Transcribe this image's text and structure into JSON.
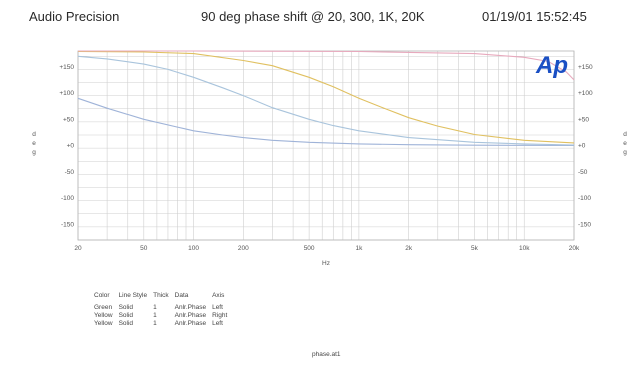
{
  "header": {
    "left": "Audio Precision",
    "center": "90 deg phase shift @ 20, 300, 1K, 20K",
    "right": "01/19/01 15:52:45"
  },
  "logo_text": "Ap",
  "footer": "phase.at1",
  "legend": {
    "headers": [
      "Color",
      "Line Style",
      "Thick",
      "Data",
      "Axis"
    ],
    "rows": [
      [
        "Green",
        "Solid",
        "1",
        "Anlr.Phase",
        "Left"
      ],
      [
        "Yellow",
        "Solid",
        "1",
        "Anlr.Phase",
        "Right"
      ],
      [
        "Yellow",
        "Solid",
        "1",
        "Anlr.Phase",
        "Left"
      ]
    ]
  },
  "colors": {
    "grid": "#cfcfcf",
    "frame": "#b5b5b5",
    "logo": "#1a4fc4",
    "series": [
      "#9fb3d8",
      "#e0c060",
      "#a9c4dc",
      "#e7a9bd"
    ]
  },
  "chart_data": {
    "type": "line",
    "x_scale": "log",
    "xlim": [
      20,
      20000
    ],
    "ylim": [
      -180,
      180
    ],
    "xlabel": "Hz",
    "ylabel_left": "deg",
    "ylabel_right": "deg",
    "x_ticks": [
      {
        "v": 20,
        "l": "20"
      },
      {
        "v": 50,
        "l": "50"
      },
      {
        "v": 100,
        "l": "100"
      },
      {
        "v": 200,
        "l": "200"
      },
      {
        "v": 500,
        "l": "500"
      },
      {
        "v": 1000,
        "l": "1k"
      },
      {
        "v": 2000,
        "l": "2k"
      },
      {
        "v": 5000,
        "l": "5k"
      },
      {
        "v": 10000,
        "l": "10k"
      },
      {
        "v": 20000,
        "l": "20k"
      }
    ],
    "y_ticks": [
      {
        "v": 150,
        "l": "+150"
      },
      {
        "v": 100,
        "l": "+100"
      },
      {
        "v": 50,
        "l": "+50"
      },
      {
        "v": 0,
        "l": "+0"
      },
      {
        "v": -50,
        "l": "-50"
      },
      {
        "v": -100,
        "l": "-100"
      },
      {
        "v": -150,
        "l": "-150"
      }
    ],
    "grid": true,
    "series": [
      {
        "x": [
          20,
          30,
          50,
          80,
          100,
          150,
          200,
          300,
          500,
          1000,
          2000,
          5000,
          10000,
          20000
        ],
        "y": [
          90,
          71,
          50,
          35,
          28,
          20,
          15,
          10,
          6,
          3,
          1.5,
          0.6,
          0.3,
          0
        ]
      },
      {
        "x": [
          20,
          50,
          100,
          200,
          300,
          500,
          700,
          1000,
          1500,
          2000,
          3000,
          5000,
          10000,
          20000
        ],
        "y": [
          179,
          178,
          175,
          162,
          152,
          130,
          112,
          90,
          68,
          53,
          37,
          21,
          10,
          5
        ]
      },
      {
        "x": [
          20,
          30,
          50,
          70,
          100,
          150,
          200,
          300,
          500,
          700,
          1000,
          2000,
          5000,
          10000,
          20000
        ],
        "y": [
          170,
          165,
          155,
          145,
          130,
          110,
          95,
          72,
          50,
          38,
          28,
          15,
          6,
          3,
          1
        ]
      },
      {
        "x": [
          20,
          100,
          1000,
          5000,
          10000,
          14000,
          18000,
          20000
        ],
        "y": [
          180,
          180,
          179,
          175,
          168,
          160,
          140,
          125
        ]
      }
    ]
  }
}
